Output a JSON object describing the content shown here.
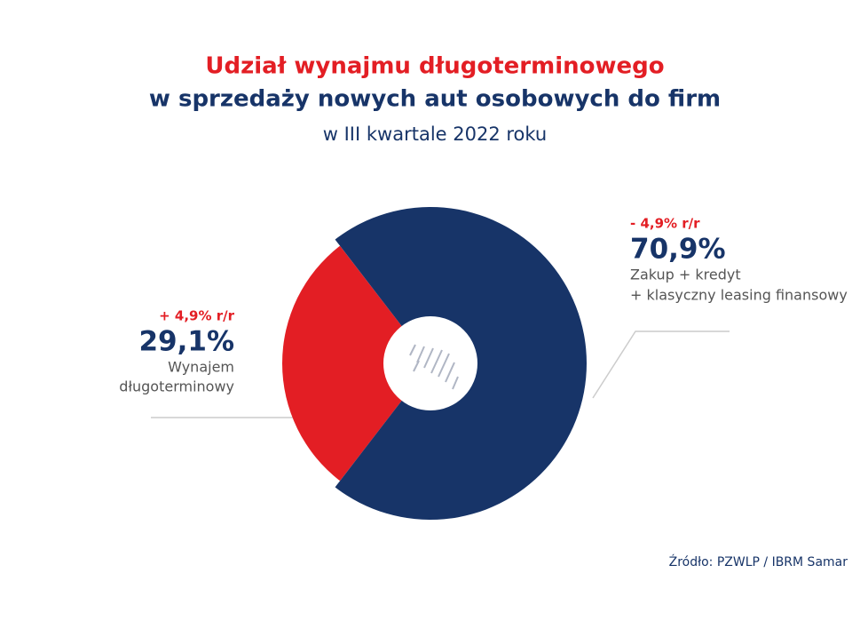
{
  "chart_data": {
    "type": "pie",
    "title_lines": [
      "Udział wynajmu długoterminowego",
      "w sprzedaży nowych aut osobowych do firm"
    ],
    "subtitle": "w III kwartale 2022 roku",
    "categories": [
      [
        "Wynajem",
        "długoterminowy"
      ],
      [
        "Zakup + kredyt",
        "+ klasyczny leasing finansowy"
      ]
    ],
    "values": [
      29.1,
      70.9
    ],
    "value_labels": [
      "29,1%",
      "70,9%"
    ],
    "annotations": [
      "+ 4,9% r/r",
      "- 4,9% r/r"
    ],
    "colors": [
      "#e31e24",
      "#173468"
    ],
    "source": "Źródło: PZWLP / IBRM Samar"
  }
}
